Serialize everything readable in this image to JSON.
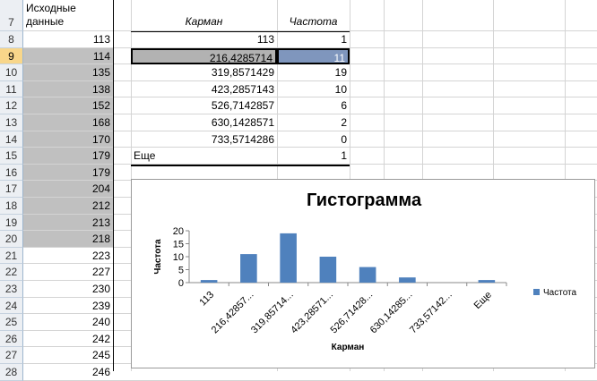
{
  "sheet": {
    "row_numbers": [
      "7",
      "8",
      "9",
      "10",
      "11",
      "12",
      "13",
      "14",
      "15",
      "16",
      "17",
      "18",
      "19",
      "20",
      "21",
      "22",
      "23",
      "24",
      "25",
      "26",
      "27",
      "28"
    ],
    "col_a_header": "Исходные данные",
    "col_a_values": [
      "113",
      "114",
      "135",
      "138",
      "152",
      "168",
      "170",
      "179",
      "179",
      "204",
      "212",
      "213",
      "218",
      "223",
      "227",
      "230",
      "239",
      "240",
      "242",
      "245",
      "246"
    ],
    "bin_header": "Карман",
    "freq_header": "Частота",
    "bins": [
      "113",
      "216,4285714",
      "319,8571429",
      "423,2857143",
      "526,7142857",
      "630,1428571",
      "733,5714286",
      "Еще"
    ],
    "freqs": [
      "1",
      "11",
      "19",
      "10",
      "6",
      "2",
      "0",
      "1"
    ]
  },
  "chart_data": {
    "type": "bar",
    "title": "Гистограмма",
    "xlabel": "Карман",
    "ylabel": "Частота",
    "categories": [
      "113",
      "216,42857...",
      "319,85714...",
      "423,28571...",
      "526,71428...",
      "630,14285...",
      "733,57142...",
      "Еще"
    ],
    "series": [
      {
        "name": "Частота",
        "values": [
          1,
          11,
          19,
          10,
          6,
          2,
          0,
          1
        ]
      }
    ],
    "ylim": [
      0,
      20
    ],
    "yticks": [
      "0",
      "5",
      "10",
      "15",
      "20"
    ],
    "legend_position": "right",
    "bar_color": "#4f81bd"
  }
}
